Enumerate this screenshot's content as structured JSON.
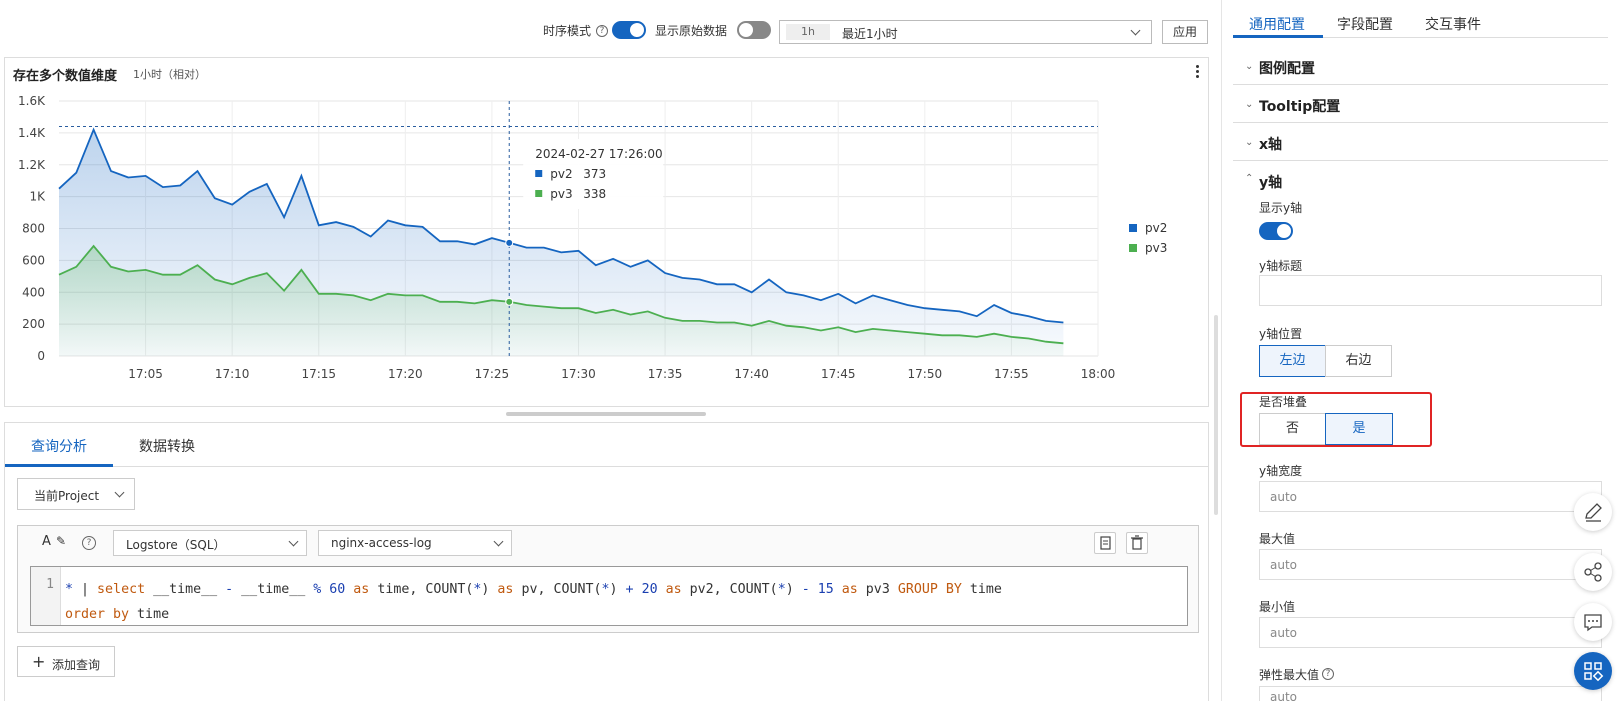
{
  "toolbar": {
    "timeseries_label": "时序模式",
    "timeseries_on": true,
    "raw_data_label": "显示原始数据",
    "raw_data_on": false,
    "time_chip": "1h",
    "time_range": "最近1小时",
    "apply_label": "应用"
  },
  "chart_panel": {
    "title": "存在多个数值维度",
    "subtitle": "1小时（相对）"
  },
  "chart_data": {
    "type": "area",
    "ylim": [
      0,
      1600
    ],
    "yticks": [
      0,
      200,
      400,
      600,
      800,
      1000,
      1200,
      1400,
      1600
    ],
    "ytick_labels": [
      "0",
      "200",
      "400",
      "600",
      "800",
      "1K",
      "1.2K",
      "1.4K",
      "1.6K"
    ],
    "x_start": "17:01",
    "x_end": "18:00",
    "xtick_labels": [
      "17:05",
      "17:10",
      "17:15",
      "17:20",
      "17:25",
      "17:30",
      "17:35",
      "17:40",
      "17:45",
      "17:50",
      "17:55",
      "18:00"
    ],
    "xtick_minutes": [
      5,
      10,
      15,
      20,
      25,
      30,
      35,
      40,
      45,
      50,
      55,
      60
    ],
    "x_minutes": [
      0,
      1,
      2,
      3,
      4,
      5,
      6,
      7,
      8,
      9,
      10,
      11,
      12,
      13,
      14,
      15,
      16,
      17,
      18,
      19,
      20,
      21,
      22,
      23,
      24,
      25,
      26,
      27,
      28,
      29,
      30,
      31,
      32,
      33,
      34,
      35,
      36,
      37,
      38,
      39,
      40,
      41,
      42,
      43,
      44,
      45,
      46,
      47,
      48,
      49,
      50,
      51,
      52,
      53,
      54,
      55,
      56,
      57,
      58
    ],
    "reference_line": 1440,
    "grid": true,
    "legend_position": "right",
    "series": [
      {
        "name": "pv2",
        "color": "#1565c0",
        "values": [
          1050,
          1150,
          1420,
          1160,
          1120,
          1130,
          1060,
          1070,
          1160,
          990,
          950,
          1030,
          1080,
          870,
          1130,
          820,
          840,
          810,
          750,
          850,
          820,
          810,
          720,
          720,
          700,
          740,
          710,
          680,
          680,
          650,
          660,
          570,
          610,
          560,
          600,
          520,
          490,
          480,
          450,
          450,
          400,
          480,
          400,
          380,
          350,
          390,
          330,
          380,
          350,
          320,
          300,
          290,
          280,
          250,
          320,
          270,
          250,
          220,
          210
        ]
      },
      {
        "name": "pv3",
        "color": "#4caf50",
        "values": [
          510,
          560,
          690,
          560,
          530,
          540,
          510,
          510,
          570,
          480,
          450,
          490,
          520,
          410,
          540,
          390,
          390,
          380,
          350,
          390,
          380,
          380,
          340,
          340,
          330,
          350,
          340,
          320,
          310,
          300,
          300,
          270,
          290,
          260,
          280,
          240,
          220,
          220,
          210,
          210,
          190,
          220,
          190,
          180,
          160,
          180,
          150,
          170,
          160,
          150,
          140,
          130,
          130,
          120,
          140,
          120,
          110,
          90,
          80
        ]
      }
    ],
    "crosshair_minute": 26,
    "tooltip": {
      "time": "2024-02-27 17:26:00",
      "rows": [
        {
          "name": "pv2",
          "value": "373",
          "color": "#1565c0"
        },
        {
          "name": "pv3",
          "value": "338",
          "color": "#4caf50"
        }
      ]
    }
  },
  "query": {
    "tabs": [
      "查询分析",
      "数据转换"
    ],
    "project_select": "当前Project",
    "store_select": "Logstore（SQL）",
    "logstore_select": "nginx-access-log",
    "line_number": "1",
    "add_query_label": "添加查询"
  },
  "config": {
    "tabs": [
      "通用配置",
      "字段配置",
      "交互事件"
    ],
    "sections": [
      "图例配置",
      "Tooltip配置",
      "x轴",
      "y轴"
    ],
    "show_y_label": "显示y轴",
    "show_y_on": true,
    "y_title_label": "y轴标题",
    "y_title_value": "",
    "y_pos_label": "y轴位置",
    "y_pos_left": "左边",
    "y_pos_right": "右边",
    "stack_label": "是否堆叠",
    "stack_no": "否",
    "stack_yes": "是",
    "y_width_label": "y轴宽度",
    "y_width_value": "auto",
    "max_label": "最大值",
    "max_value": "auto",
    "min_label": "最小值",
    "min_value": "auto",
    "elastic_max_label": "弹性最大值",
    "elastic_max_value": "auto"
  }
}
